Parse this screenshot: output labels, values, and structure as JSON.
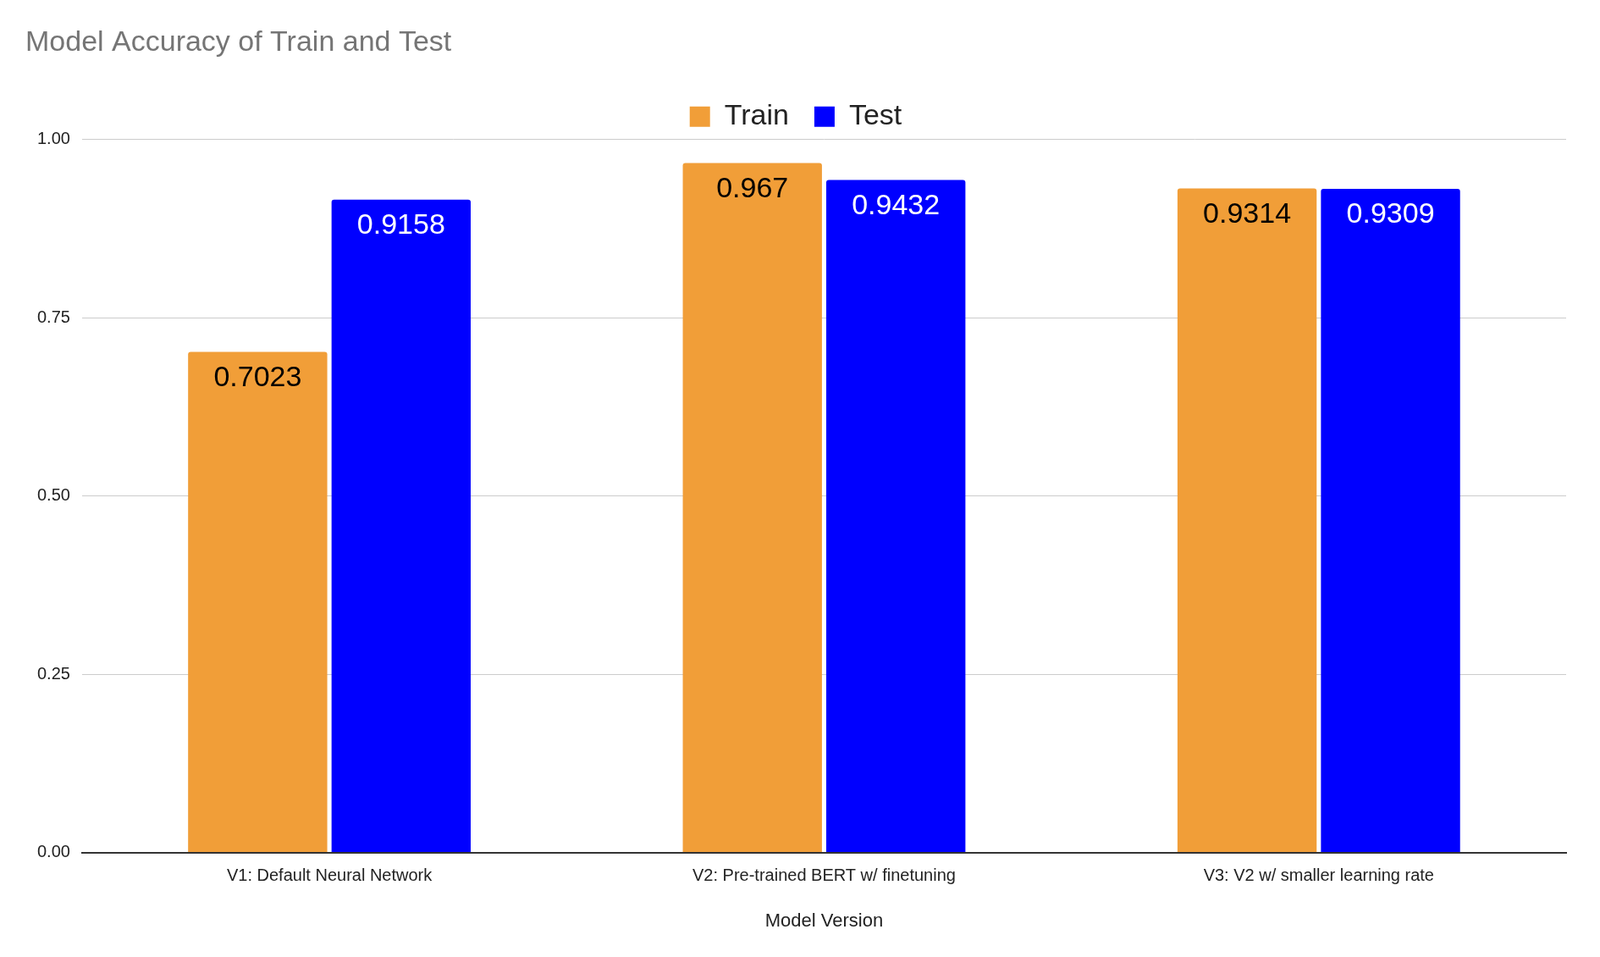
{
  "chart_data": {
    "type": "bar",
    "title": "Model Accuracy of Train and Test",
    "x_label": "Model Version",
    "categories": [
      "V1: Default Neural Network",
      "V2: Pre-trained BERT w/ finetuning",
      "V3: V2 w/ smaller learning rate"
    ],
    "series": [
      {
        "name": "Train",
        "color": "#f19e38",
        "values": [
          0.7023,
          0.967,
          0.9314
        ]
      },
      {
        "name": "Test",
        "color": "#0000ff",
        "values": [
          0.9158,
          0.9432,
          0.9309
        ]
      }
    ],
    "ylim": [
      0,
      1
    ],
    "yticks": [
      {
        "value": 0,
        "label": "0.00"
      },
      {
        "value": 0.25,
        "label": "0.25"
      },
      {
        "value": 0.5,
        "label": "0.50"
      },
      {
        "value": 0.75,
        "label": "0.75"
      },
      {
        "value": 1,
        "label": "1.00"
      }
    ],
    "grid": true,
    "legend": "top",
    "data_labels": true
  }
}
